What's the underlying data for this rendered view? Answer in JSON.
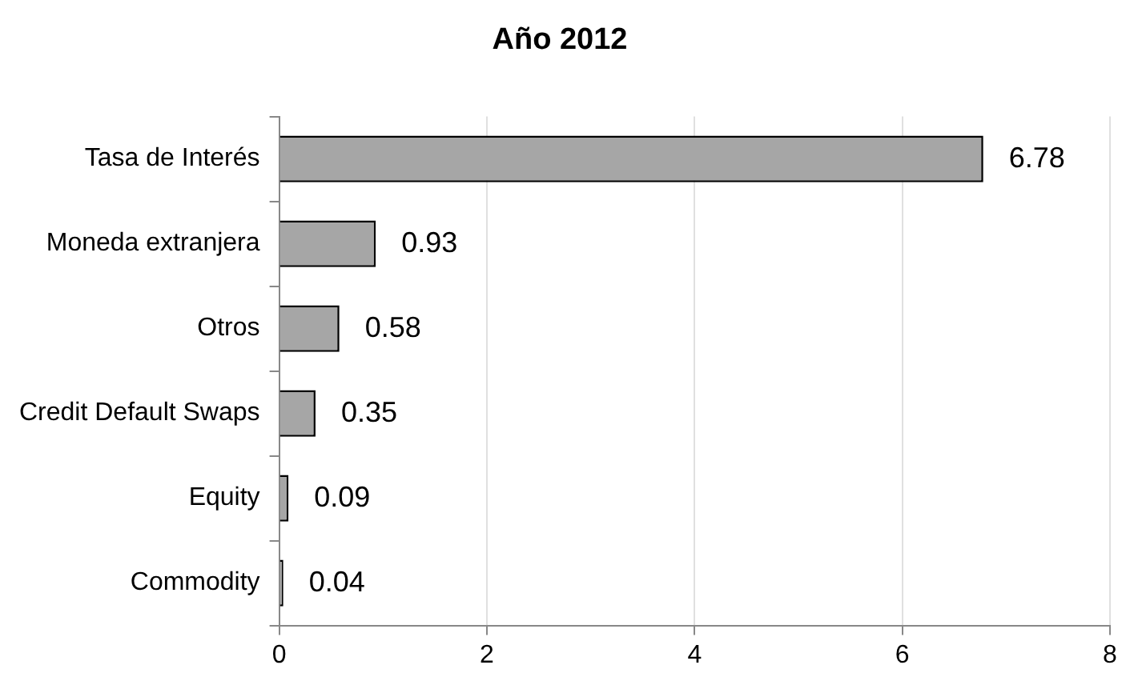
{
  "chart_data": {
    "type": "bar",
    "orientation": "horizontal",
    "title": "Año 2012",
    "categories": [
      "Tasa de Interés",
      "Moneda extranjera",
      "Otros",
      "Credit Default Swaps",
      "Equity",
      "Commodity"
    ],
    "values": [
      6.78,
      0.93,
      0.58,
      0.35,
      0.09,
      0.04
    ],
    "color": "#a6a6a6",
    "xlim": [
      0,
      8
    ],
    "xticks": [
      0,
      2,
      4,
      6,
      8
    ],
    "grid": "x",
    "data_labels": true,
    "legend": false
  }
}
